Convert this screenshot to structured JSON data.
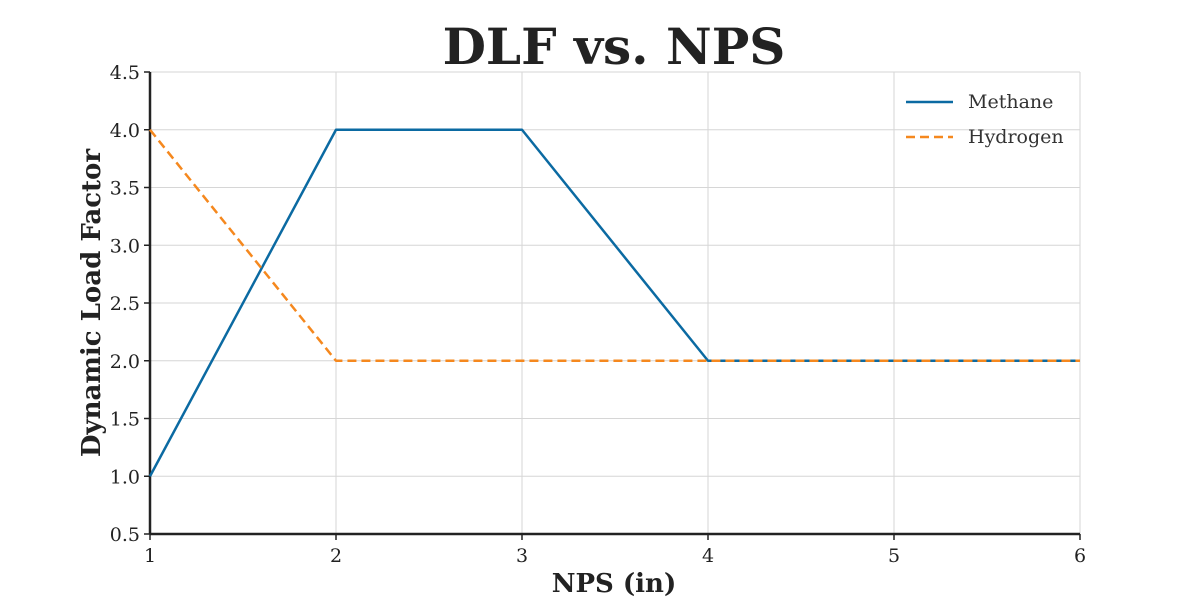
{
  "chart_data": {
    "type": "line",
    "title": "DLF vs. NPS",
    "xlabel": "NPS (in)",
    "ylabel": "Dynamic Load Factor",
    "x": [
      1,
      2,
      3,
      4,
      5,
      6
    ],
    "xlim": [
      1,
      6
    ],
    "ylim": [
      0.5,
      4.5
    ],
    "xticks": [
      "1",
      "2",
      "3",
      "4",
      "5",
      "6"
    ],
    "yticks": [
      "0.5",
      "1.0",
      "1.5",
      "2.0",
      "2.5",
      "3.0",
      "3.5",
      "4.0",
      "4.5"
    ],
    "grid": true,
    "legend_position": "top-right",
    "series": [
      {
        "name": "Methane",
        "values": [
          1.0,
          4.0,
          4.0,
          2.0,
          2.0,
          2.0
        ],
        "color": "#0b6aa2",
        "style": "solid"
      },
      {
        "name": "Hydrogen",
        "values": [
          4.0,
          2.0,
          2.0,
          2.0,
          2.0,
          2.0
        ],
        "color": "#f5881e",
        "style": "dashed"
      }
    ]
  }
}
